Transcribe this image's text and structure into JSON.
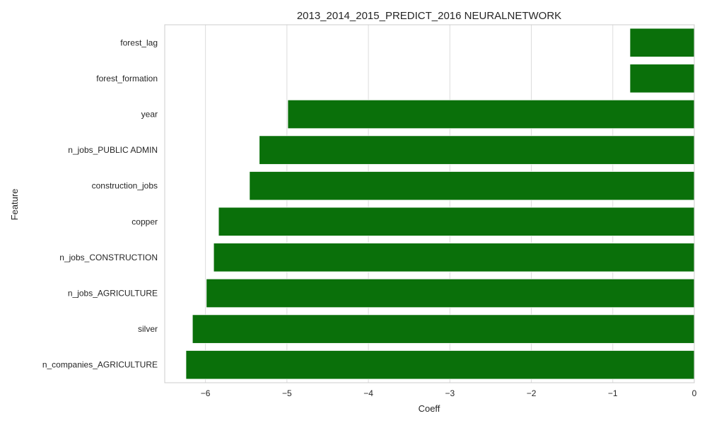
{
  "chart_data": {
    "type": "bar",
    "orientation": "horizontal",
    "title": "2013_2014_2015_PREDICT_2016 NEURALNETWORK",
    "xlabel": "Coeff",
    "ylabel": "Feature",
    "xlim": [
      -6.5,
      0
    ],
    "xticks": [
      -6,
      -5,
      -4,
      -3,
      -2,
      -1,
      0
    ],
    "xtick_labels": [
      "−6",
      "−5",
      "−4",
      "−3",
      "−2",
      "−1",
      "0"
    ],
    "grid": true,
    "bar_color": "#0a700a",
    "categories": [
      "forest_lag",
      "forest_formation",
      "year",
      "n_jobs_PUBLIC ADMIN",
      "construction_jobs",
      "copper",
      "n_jobs_CONSTRUCTION",
      "n_jobs_AGRICULTURE",
      "silver",
      "n_companies_AGRICULTURE"
    ],
    "values": [
      -0.79,
      -0.79,
      -4.99,
      -5.34,
      -5.46,
      -5.84,
      -5.9,
      -5.99,
      -6.16,
      -6.24
    ]
  }
}
